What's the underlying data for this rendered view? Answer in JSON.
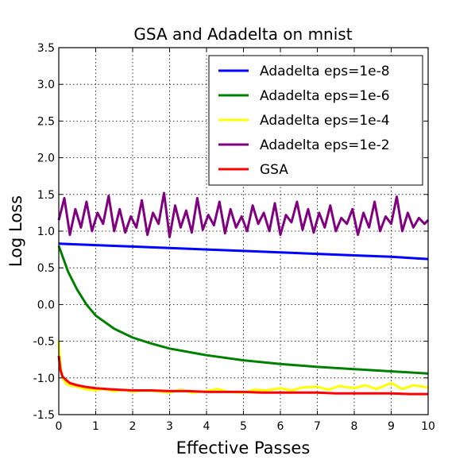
{
  "chart_data": {
    "type": "line",
    "title": "GSA and Adadelta on mnist",
    "xlabel": "Effective Passes",
    "ylabel": "Log Loss",
    "xlim": [
      0,
      10
    ],
    "ylim": [
      -1.5,
      3.5
    ],
    "xticks": [
      "0",
      "1",
      "2",
      "3",
      "4",
      "5",
      "6",
      "7",
      "8",
      "9",
      "10"
    ],
    "yticks": [
      "-1.5",
      "-1.0",
      "-0.5",
      "0.0",
      "0.5",
      "1.0",
      "1.5",
      "2.0",
      "2.5",
      "3.0",
      "3.5"
    ],
    "grid": true,
    "legend_position": "top-right",
    "series": [
      {
        "name": "Adadelta eps=1e-8",
        "color": "#0000ff",
        "x": [
          0,
          1,
          2,
          3,
          4,
          5,
          6,
          7,
          8,
          9,
          10
        ],
        "y": [
          0.83,
          0.81,
          0.79,
          0.77,
          0.75,
          0.73,
          0.71,
          0.69,
          0.67,
          0.65,
          0.62
        ]
      },
      {
        "name": "Adadelta eps=1e-6",
        "color": "#008000",
        "x": [
          0,
          0.25,
          0.5,
          0.75,
          1,
          1.5,
          2,
          2.5,
          3,
          4,
          5,
          6,
          7,
          8,
          9,
          10
        ],
        "y": [
          0.8,
          0.45,
          0.2,
          0.0,
          -0.15,
          -0.33,
          -0.45,
          -0.53,
          -0.6,
          -0.69,
          -0.76,
          -0.81,
          -0.85,
          -0.88,
          -0.91,
          -0.94
        ]
      },
      {
        "name": "Adadelta eps=1e-4",
        "color": "#ffff00",
        "x": [
          0,
          0.05,
          0.1,
          0.2,
          0.3,
          0.5,
          0.7,
          1,
          1.2,
          1.5,
          1.8,
          2,
          2.3,
          2.6,
          3,
          3.3,
          3.6,
          4,
          4.3,
          4.6,
          5,
          5.3,
          5.6,
          6,
          6.3,
          6.6,
          7,
          7.3,
          7.6,
          8,
          8.3,
          8.6,
          9,
          9.3,
          9.6,
          10
        ],
        "y": [
          -0.5,
          -0.85,
          -1.0,
          -1.08,
          -1.1,
          -1.12,
          -1.15,
          -1.17,
          -1.15,
          -1.18,
          -1.16,
          -1.19,
          -1.17,
          -1.18,
          -1.2,
          -1.16,
          -1.2,
          -1.18,
          -1.15,
          -1.19,
          -1.2,
          -1.16,
          -1.17,
          -1.14,
          -1.17,
          -1.13,
          -1.12,
          -1.16,
          -1.11,
          -1.14,
          -1.1,
          -1.15,
          -1.07,
          -1.15,
          -1.1,
          -1.13
        ]
      },
      {
        "name": "Adadelta eps=1e-2",
        "color": "#800080",
        "x": [
          0,
          0.15,
          0.3,
          0.45,
          0.6,
          0.75,
          0.9,
          1.05,
          1.2,
          1.35,
          1.5,
          1.65,
          1.8,
          1.95,
          2.1,
          2.25,
          2.4,
          2.55,
          2.7,
          2.85,
          3.0,
          3.15,
          3.3,
          3.45,
          3.6,
          3.75,
          3.9,
          4.05,
          4.2,
          4.35,
          4.5,
          4.65,
          4.8,
          4.95,
          5.1,
          5.25,
          5.4,
          5.55,
          5.7,
          5.85,
          6.0,
          6.15,
          6.3,
          6.45,
          6.6,
          6.75,
          6.9,
          7.05,
          7.2,
          7.35,
          7.5,
          7.65,
          7.8,
          7.95,
          8.1,
          8.25,
          8.4,
          8.55,
          8.7,
          8.85,
          9.0,
          9.15,
          9.3,
          9.45,
          9.6,
          9.75,
          9.9,
          10
        ],
        "y": [
          1.15,
          1.45,
          0.95,
          1.3,
          1.05,
          1.4,
          1.0,
          1.25,
          1.1,
          1.48,
          1.0,
          1.3,
          0.98,
          1.2,
          1.05,
          1.42,
          0.95,
          1.25,
          1.1,
          1.52,
          0.92,
          1.35,
          1.05,
          1.28,
          0.98,
          1.45,
          1.02,
          1.22,
          1.08,
          1.4,
          0.97,
          1.3,
          1.05,
          1.2,
          1.0,
          1.35,
          1.1,
          1.25,
          1.0,
          1.38,
          0.95,
          1.22,
          1.12,
          1.4,
          1.02,
          1.3,
          0.98,
          1.25,
          1.05,
          1.35,
          1.0,
          1.18,
          1.1,
          1.3,
          0.95,
          1.25,
          1.05,
          1.4,
          1.0,
          1.2,
          1.1,
          1.47,
          1.0,
          1.25,
          1.05,
          1.18,
          1.1,
          1.15
        ]
      },
      {
        "name": "GSA",
        "color": "#ff0000",
        "x": [
          0,
          0.05,
          0.1,
          0.2,
          0.3,
          0.5,
          0.7,
          1,
          1.3,
          1.6,
          2,
          2.5,
          3,
          3.5,
          4,
          4.5,
          5,
          5.5,
          6,
          6.5,
          7,
          7.5,
          8,
          8.5,
          9,
          9.5,
          10
        ],
        "y": [
          -0.7,
          -0.9,
          -0.98,
          -1.03,
          -1.07,
          -1.1,
          -1.12,
          -1.14,
          -1.15,
          -1.16,
          -1.17,
          -1.17,
          -1.18,
          -1.18,
          -1.19,
          -1.19,
          -1.19,
          -1.2,
          -1.2,
          -1.2,
          -1.2,
          -1.21,
          -1.21,
          -1.21,
          -1.21,
          -1.22,
          -1.22
        ]
      }
    ]
  }
}
